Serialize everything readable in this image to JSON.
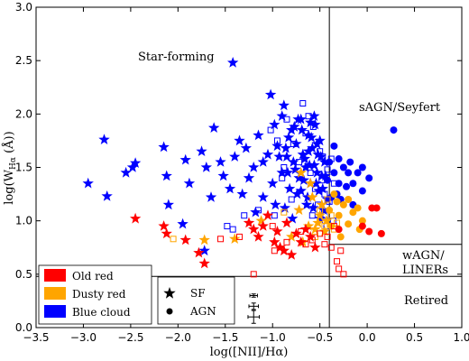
{
  "chart_data": {
    "type": "scatter",
    "xlabel": "log([NII]/Hα)",
    "ylabel": "log(W_Hα (Å))",
    "ylabel_base": "log(W",
    "ylabel_sub": "Hα",
    "ylabel_tail": " (Å))",
    "xlim": [
      -3.5,
      1.0
    ],
    "ylim": [
      0.0,
      3.0
    ],
    "xticks": [
      "−3.5",
      "−3.0",
      "−2.5",
      "−2.0",
      "−1.5",
      "−1.0",
      "−0.5",
      "0.0",
      "0.5",
      "1.0"
    ],
    "yticks": [
      "0.0",
      "0.5",
      "1.0",
      "1.5",
      "2.0",
      "2.5",
      "3.0"
    ],
    "region_labels": {
      "star_forming": "Star-forming",
      "sagn": "sAGN/Seyfert",
      "wagn_1": "wAGN/",
      "wagn_2": "LINERs",
      "retired": "Retired"
    },
    "divisions": {
      "vertical_x": -0.4,
      "retired_y": 0.48,
      "wagn_y": 0.78
    },
    "legend_color": [
      {
        "label": "Old red",
        "color": "#ff0000"
      },
      {
        "label": "Dusty red",
        "color": "#ffa500"
      },
      {
        "label": "Blue cloud",
        "color": "#0000ff"
      }
    ],
    "legend_marker": [
      {
        "label": "SF",
        "marker": "star"
      },
      {
        "label": "AGN",
        "marker": "circle"
      }
    ],
    "errorbars": [
      {
        "x": -1.2,
        "y": 0.1,
        "xerr": 0.06,
        "yerr": 0.06
      },
      {
        "x": -1.2,
        "y": 0.2,
        "xerr": 0.05,
        "yerr": 0.03
      },
      {
        "x": -1.2,
        "y": 0.3,
        "xerr": 0.04,
        "yerr": 0.015
      }
    ],
    "series": [
      {
        "name": "Blue cloud",
        "color": "#0000ff",
        "marker": "star",
        "points": [
          [
            -1.42,
            2.48
          ],
          [
            -2.95,
            1.35
          ],
          [
            -2.78,
            1.76
          ],
          [
            -2.75,
            1.23
          ],
          [
            -2.55,
            1.45
          ],
          [
            -2.48,
            1.5
          ],
          [
            -2.45,
            1.54
          ],
          [
            -2.15,
            1.69
          ],
          [
            -2.12,
            1.42
          ],
          [
            -1.92,
            1.57
          ],
          [
            -1.88,
            1.35
          ],
          [
            -1.75,
            1.65
          ],
          [
            -1.7,
            1.5
          ],
          [
            -1.65,
            1.22
          ],
          [
            -1.62,
            1.87
          ],
          [
            -1.55,
            1.55
          ],
          [
            -1.52,
            1.42
          ],
          [
            -1.45,
            1.3
          ],
          [
            -1.4,
            1.6
          ],
          [
            -1.35,
            1.75
          ],
          [
            -1.28,
            1.68
          ],
          [
            -1.25,
            1.4
          ],
          [
            -1.2,
            1.5
          ],
          [
            -1.15,
            1.8
          ],
          [
            -1.1,
            1.22
          ],
          [
            -1.05,
            1.62
          ],
          [
            -1.02,
            2.18
          ],
          [
            -1.0,
            1.35
          ],
          [
            -0.98,
            1.9
          ],
          [
            -0.95,
            1.7
          ],
          [
            -0.9,
            1.45
          ],
          [
            -0.88,
            2.08
          ],
          [
            -0.85,
            1.6
          ],
          [
            -0.82,
            1.3
          ],
          [
            -0.8,
            1.85
          ],
          [
            -0.78,
            1.55
          ],
          [
            -0.75,
            1.72
          ],
          [
            -0.72,
            1.4
          ],
          [
            -0.7,
            1.95
          ],
          [
            -0.68,
            1.62
          ],
          [
            -0.65,
            1.5
          ],
          [
            -0.62,
            1.8
          ],
          [
            -0.6,
            1.35
          ],
          [
            -0.58,
            1.68
          ],
          [
            -0.56,
            1.52
          ],
          [
            -0.55,
            1.9
          ],
          [
            -0.53,
            1.45
          ],
          [
            -0.5,
            1.75
          ],
          [
            -0.49,
            1.6
          ],
          [
            -0.47,
            1.3
          ],
          [
            -0.45,
            1.55
          ],
          [
            -0.44,
            1.42
          ],
          [
            -0.42,
            1.2
          ],
          [
            -0.9,
            1.98
          ],
          [
            -0.83,
            1.78
          ],
          [
            -0.77,
            1.88
          ],
          [
            -0.7,
            1.28
          ],
          [
            -0.66,
            1.58
          ],
          [
            -0.63,
            1.22
          ],
          [
            -0.6,
            1.92
          ],
          [
            -0.57,
            1.12
          ],
          [
            -0.52,
            1.62
          ],
          [
            -0.5,
            1.02
          ],
          [
            -1.32,
            1.25
          ],
          [
            -1.18,
            1.08
          ],
          [
            -1.1,
            1.55
          ],
          [
            -0.97,
            1.15
          ],
          [
            -0.93,
            1.6
          ],
          [
            -0.87,
            1.12
          ],
          [
            -0.79,
            1.02
          ],
          [
            -0.74,
            1.25
          ],
          [
            -0.69,
            1.85
          ],
          [
            -0.64,
            1.15
          ],
          [
            -0.61,
            1.52
          ],
          [
            -0.54,
            1.35
          ],
          [
            -0.48,
            1.42
          ],
          [
            -0.46,
            1.1
          ],
          [
            -1.95,
            0.97
          ],
          [
            -1.72,
            0.72
          ],
          [
            -2.1,
            1.15
          ],
          [
            -0.86,
            1.68
          ],
          [
            -0.76,
            1.48
          ],
          [
            -0.67,
            1.38
          ],
          [
            -0.59,
            1.78
          ],
          [
            -0.51,
            1.28
          ],
          [
            -0.84,
            1.45
          ],
          [
            -0.73,
            1.95
          ],
          [
            -0.62,
            1.65
          ],
          [
            -0.56,
            1.98
          ],
          [
            -0.53,
            1.72
          ]
        ]
      },
      {
        "name": "Blue cloud",
        "color": "#0000ff",
        "marker": "circle",
        "points": [
          [
            -0.35,
            1.7
          ],
          [
            -0.3,
            1.58
          ],
          [
            -0.25,
            1.5
          ],
          [
            -0.2,
            1.45
          ],
          [
            -0.15,
            1.35
          ],
          [
            -0.35,
            1.45
          ],
          [
            -0.3,
            1.35
          ],
          [
            -0.1,
            1.45
          ],
          [
            -0.05,
            1.5
          ],
          [
            0.28,
            1.85
          ],
          [
            -0.38,
            1.22
          ],
          [
            -0.28,
            1.2
          ],
          [
            -0.15,
            1.15
          ],
          [
            -0.05,
            1.28
          ],
          [
            -0.4,
            1.55
          ],
          [
            -0.32,
            1.25
          ],
          [
            -0.22,
            1.32
          ],
          [
            -0.42,
            1.38
          ],
          [
            -0.18,
            1.55
          ],
          [
            0.02,
            1.4
          ]
        ]
      },
      {
        "name": "Blue cloud",
        "color": "#0000ff",
        "marker": "square_open",
        "points": [
          [
            -1.02,
            1.85
          ],
          [
            -0.95,
            1.75
          ],
          [
            -0.9,
            1.4
          ],
          [
            -0.85,
            1.95
          ],
          [
            -0.8,
            1.2
          ],
          [
            -0.72,
            1.55
          ],
          [
            -0.68,
            2.1
          ],
          [
            -0.6,
            1.45
          ],
          [
            -0.55,
            1.3
          ],
          [
            -0.5,
            1.65
          ],
          [
            -0.45,
            1.25
          ],
          [
            -0.42,
            1.48
          ],
          [
            -0.38,
            1.58
          ],
          [
            -0.35,
            1.35
          ],
          [
            -1.48,
            0.95
          ],
          [
            -1.42,
            0.92
          ],
          [
            -1.15,
            1.1
          ],
          [
            -0.98,
            1.05
          ],
          [
            -0.88,
            1.5
          ],
          [
            -0.78,
            1.72
          ],
          [
            -0.65,
            1.82
          ],
          [
            -0.58,
            1.05
          ],
          [
            -0.52,
            1.15
          ],
          [
            -0.47,
            1.6
          ],
          [
            -0.44,
            1.05
          ],
          [
            -0.4,
            1.18
          ],
          [
            -0.36,
            1.0
          ],
          [
            -1.3,
            1.05
          ],
          [
            -0.62,
            1.98
          ],
          [
            -0.57,
            1.88
          ],
          [
            -0.48,
            1.38
          ],
          [
            -0.43,
            0.95
          ]
        ]
      },
      {
        "name": "Dusty red",
        "color": "#ffa500",
        "marker": "star",
        "points": [
          [
            -1.72,
            0.82
          ],
          [
            -1.4,
            0.83
          ],
          [
            -1.12,
            1.0
          ],
          [
            -0.8,
            0.85
          ],
          [
            -0.72,
            1.1
          ],
          [
            -0.7,
            1.45
          ],
          [
            -0.62,
            0.95
          ],
          [
            -0.58,
            1.22
          ],
          [
            -0.55,
            0.92
          ],
          [
            -0.5,
            1.05
          ],
          [
            -0.45,
            0.9
          ],
          [
            -0.68,
            0.8
          ],
          [
            -0.6,
            1.35
          ],
          [
            -0.48,
            1.15
          ],
          [
            -0.52,
            0.98
          ],
          [
            -0.43,
            1.0
          ]
        ]
      },
      {
        "name": "Dusty red",
        "color": "#ffa500",
        "marker": "circle",
        "points": [
          [
            -0.35,
            1.25
          ],
          [
            -0.3,
            1.05
          ],
          [
            -0.25,
            1.15
          ],
          [
            -0.2,
            0.97
          ],
          [
            -0.15,
            1.08
          ],
          [
            -0.1,
            1.12
          ],
          [
            -0.05,
            1.0
          ],
          [
            -0.38,
            0.95
          ],
          [
            -0.32,
            1.18
          ],
          [
            -0.2,
            1.2
          ],
          [
            -0.08,
            0.92
          ],
          [
            -0.28,
            0.85
          ],
          [
            -0.4,
            1.1
          ]
        ]
      },
      {
        "name": "Dusty red",
        "color": "#ffa500",
        "marker": "square_open",
        "points": [
          [
            -2.05,
            0.83
          ],
          [
            -0.88,
            1.08
          ],
          [
            -0.55,
            0.85
          ],
          [
            -0.5,
            1.1
          ],
          [
            -0.45,
            0.95
          ],
          [
            -0.42,
            1.2
          ],
          [
            -0.38,
            1.05
          ],
          [
            -0.35,
            0.92
          ],
          [
            -0.32,
            0.98
          ]
        ]
      },
      {
        "name": "Old red",
        "color": "#ff0000",
        "marker": "star",
        "points": [
          [
            -2.45,
            1.02
          ],
          [
            -2.15,
            0.95
          ],
          [
            -2.12,
            0.88
          ],
          [
            -1.92,
            0.82
          ],
          [
            -1.78,
            0.7
          ],
          [
            -1.72,
            0.6
          ],
          [
            -1.25,
            0.98
          ],
          [
            -1.2,
            0.92
          ],
          [
            -1.15,
            0.85
          ],
          [
            -1.05,
            1.05
          ],
          [
            -0.98,
            0.8
          ],
          [
            -0.95,
            0.9
          ],
          [
            -0.92,
            0.75
          ],
          [
            -0.88,
            0.72
          ],
          [
            -0.85,
            0.98
          ],
          [
            -0.8,
            0.68
          ],
          [
            -0.75,
            0.88
          ],
          [
            -0.7,
            0.8
          ],
          [
            -0.65,
            0.92
          ],
          [
            -1.1,
            0.95
          ],
          [
            -0.6,
            0.85
          ],
          [
            -0.55,
            0.75
          ]
        ]
      },
      {
        "name": "Old red",
        "color": "#ff0000",
        "marker": "circle",
        "points": [
          [
            0.05,
            1.12
          ],
          [
            0.1,
            1.12
          ],
          [
            0.15,
            0.88
          ],
          [
            -0.3,
            0.92
          ],
          [
            0.02,
            0.9
          ],
          [
            -0.05,
            0.95
          ]
        ]
      },
      {
        "name": "Old red",
        "color": "#ff0000",
        "marker": "square_open",
        "points": [
          [
            -1.55,
            0.83
          ],
          [
            -1.2,
            0.5
          ],
          [
            -1.35,
            0.85
          ],
          [
            -1.0,
            0.95
          ],
          [
            -0.98,
            0.72
          ],
          [
            -0.85,
            0.8
          ],
          [
            -0.7,
            0.9
          ],
          [
            -0.65,
            0.78
          ],
          [
            -0.58,
            0.82
          ],
          [
            -0.5,
            0.88
          ],
          [
            -0.45,
            0.78
          ],
          [
            -0.42,
            0.85
          ],
          [
            -0.38,
            0.75
          ],
          [
            -0.35,
            0.95
          ],
          [
            -0.32,
            0.62
          ],
          [
            -0.3,
            0.55
          ],
          [
            -0.28,
            0.72
          ],
          [
            -0.25,
            0.5
          ]
        ]
      }
    ]
  }
}
